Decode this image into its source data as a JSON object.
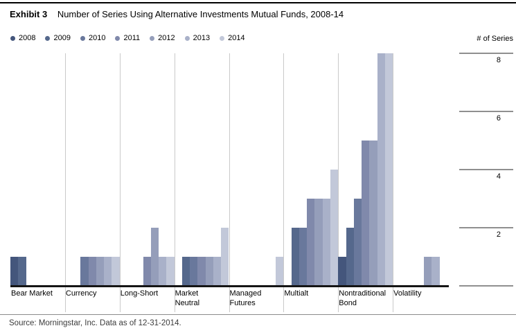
{
  "header": {
    "exhibit_label": "Exhibit 3",
    "title": "Number of Series Using Alternative Investments Mutual Funds, 2008-14"
  },
  "axis": {
    "unit_label": "# of Series",
    "ticks": [
      "8",
      "6",
      "4",
      "2"
    ]
  },
  "source": "Source: Morningstar, Inc. Data as of 12-31-2014.",
  "chart_data": {
    "type": "bar",
    "title": "Number of Series Using Alternative Investments Mutual Funds, 2008-14",
    "ylabel": "# of Series",
    "ylim": [
      0,
      8
    ],
    "yticks": [
      8,
      6,
      4,
      2
    ],
    "grid": "vertical category separators only",
    "legend_position": "top-left",
    "series": [
      {
        "name": "2008",
        "color": "#44567c"
      },
      {
        "name": "2009",
        "color": "#55688c"
      },
      {
        "name": "2010",
        "color": "#69789c"
      },
      {
        "name": "2011",
        "color": "#8089ab"
      },
      {
        "name": "2012",
        "color": "#959eba"
      },
      {
        "name": "2013",
        "color": "#a9b1c9"
      },
      {
        "name": "2014",
        "color": "#c2c8d9"
      }
    ],
    "categories": [
      {
        "label": [
          "Bear Market"
        ],
        "values": [
          1,
          1,
          null,
          null,
          null,
          null,
          null
        ]
      },
      {
        "label": [
          "Currency"
        ],
        "values": [
          null,
          null,
          1,
          1,
          1,
          1,
          1
        ]
      },
      {
        "label": [
          "Long-Short"
        ],
        "values": [
          null,
          null,
          null,
          1,
          2,
          1,
          1
        ]
      },
      {
        "label": [
          "Market",
          "Neutral"
        ],
        "values": [
          null,
          1,
          1,
          1,
          1,
          1,
          2
        ]
      },
      {
        "label": [
          "Managed",
          "Futures"
        ],
        "values": [
          null,
          null,
          null,
          null,
          null,
          null,
          1
        ]
      },
      {
        "label": [
          "Multialt"
        ],
        "values": [
          null,
          2,
          2,
          3,
          3,
          3,
          4
        ]
      },
      {
        "label": [
          "Nontraditional",
          "Bond"
        ],
        "values": [
          1,
          2,
          3,
          5,
          5,
          8,
          8
        ]
      },
      {
        "label": [
          "Volatility"
        ],
        "values": [
          null,
          null,
          null,
          null,
          1,
          1,
          null
        ]
      }
    ]
  }
}
